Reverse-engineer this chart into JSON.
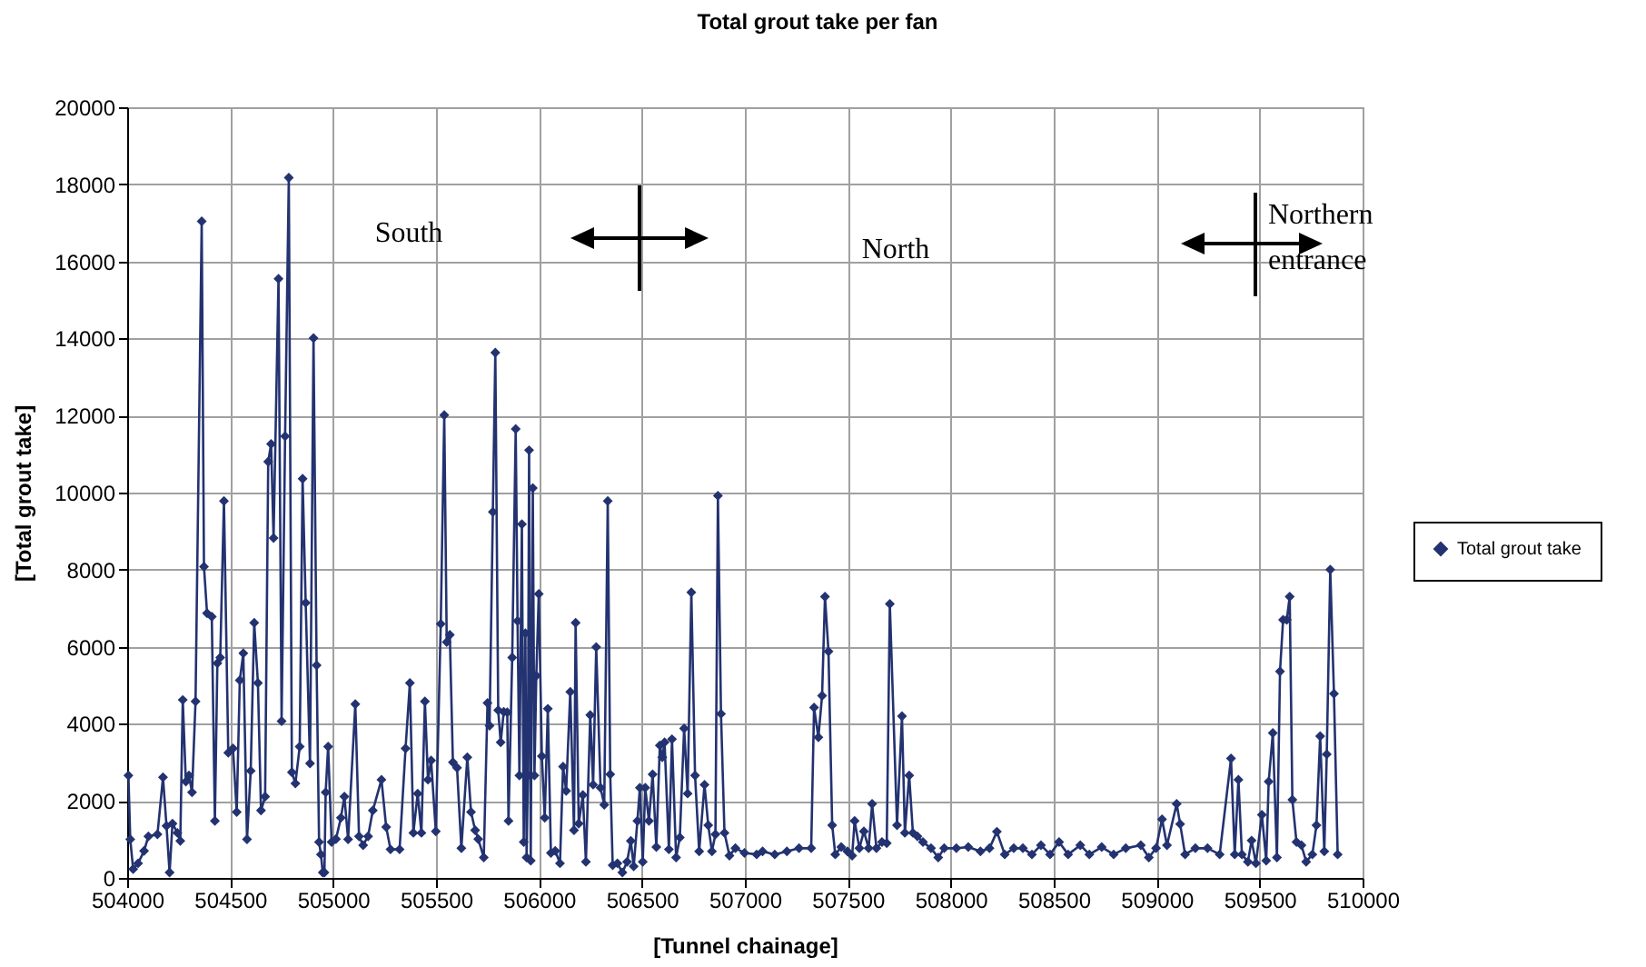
{
  "chart_data": {
    "type": "line",
    "title": "Total grout take per fan",
    "xlabel": "[Tunnel chainage]",
    "ylabel": "[Total grout take]",
    "xlim": [
      504000,
      510000
    ],
    "xticks": [
      504000,
      504500,
      505000,
      505500,
      506000,
      506500,
      507000,
      507500,
      508000,
      508500,
      509000,
      509500,
      510000
    ],
    "ylim": [
      0,
      20000
    ],
    "yticks": [
      0,
      2000,
      4000,
      6000,
      8000,
      10000,
      12000,
      14000,
      16000,
      18000,
      20000
    ],
    "grid": true,
    "legend": "right",
    "marker": "diamond",
    "line_style": "solid",
    "annotations": [
      "South",
      "North",
      "Northern entrance"
    ],
    "x": [
      504006,
      504015,
      504029,
      504053,
      504082,
      504103,
      504147,
      504174,
      504191,
      504206,
      504220,
      504244,
      504258,
      504270,
      504285,
      504300,
      504315,
      504332,
      504362,
      504373,
      504388,
      504411,
      504426,
      504438,
      504452,
      504470,
      504491,
      504514,
      504532,
      504547,
      504564,
      504582,
      504600,
      504617,
      504635,
      504650,
      504670,
      504685,
      504699,
      504711,
      504735,
      504750,
      504767,
      504785,
      504800,
      504817,
      504838,
      504852,
      504867,
      504888,
      504905,
      504920,
      504932,
      504941,
      504950,
      504958,
      504964,
      504976,
      504993,
      505014,
      505038,
      505055,
      505073,
      505108,
      505126,
      505146,
      505170,
      505193,
      505235,
      505258,
      505279,
      505323,
      505352,
      505373,
      505390,
      505411,
      505429,
      505446,
      505461,
      505476,
      505499,
      505523,
      505540,
      505552,
      505567,
      505582,
      505602,
      505623,
      505652,
      505670,
      505690,
      505705,
      505732,
      505750,
      505760,
      505776,
      505788,
      505802,
      505814,
      505829,
      505846,
      505852,
      505870,
      505887,
      505896,
      505905,
      505917,
      505926,
      505934,
      505940,
      505946,
      505952,
      505960,
      505970,
      505978,
      505987,
      505999,
      506014,
      506028,
      506043,
      506058,
      506079,
      506102,
      506117,
      506132,
      506152,
      506170,
      506178,
      506193,
      506213,
      506228,
      506249,
      506263,
      506278,
      506299,
      506317,
      506334,
      506346,
      506358,
      506381,
      506405,
      506428,
      506446,
      506460,
      506478,
      506490,
      506504,
      506516,
      506534,
      506552,
      506570,
      506587,
      506599,
      506610,
      506631,
      506646,
      506666,
      506684,
      506705,
      506722,
      506740,
      506758,
      506778,
      506804,
      506822,
      506840,
      506857,
      506869,
      506884,
      506901,
      506925,
      506954,
      506998,
      507057,
      507086,
      507145,
      507204,
      507263,
      507322,
      507336,
      507357,
      507375,
      507389,
      507406,
      507424,
      507439,
      507468,
      507498,
      507521,
      507533,
      507556,
      507578,
      507601,
      507618,
      507639,
      507666,
      507689,
      507704,
      507739,
      507763,
      507777,
      507798,
      507816,
      507838,
      507865,
      507904,
      507939,
      507968,
      508027,
      508085,
      508144,
      508188,
      508224,
      508262,
      508306,
      508350,
      508394,
      508438,
      508482,
      508526,
      508570,
      508629,
      508673,
      508733,
      508791,
      508850,
      508923,
      508962,
      508997,
      509026,
      509050,
      509097,
      509114,
      509138,
      509188,
      509247,
      509306,
      509361,
      509379,
      509397,
      509414,
      509443,
      509461,
      509482,
      509511,
      509532,
      509544,
      509564,
      509584,
      509599,
      509614,
      509632,
      509646,
      509659,
      509679,
      509703,
      509726,
      509756,
      509776,
      509794,
      509814,
      509826,
      509843,
      509861,
      509879
    ],
    "series": [
      {
        "name": "Total grout take",
        "color": "#233270",
        "values": [
          2660,
          1000,
          230,
          380,
          700,
          1080,
          1130,
          2610,
          1350,
          140,
          1410,
          1170,
          960,
          4620,
          2500,
          2660,
          2220,
          4580,
          17040,
          8080,
          6870,
          6780,
          1480,
          5570,
          5720,
          9780,
          3250,
          3360,
          1710,
          5130,
          5830,
          1000,
          2780,
          6620,
          5060,
          1750,
          2110,
          10800,
          11260,
          8820,
          15550,
          4070,
          11460,
          18170,
          2740,
          2450,
          3410,
          10360,
          7140,
          2970,
          14010,
          5520,
          930,
          610,
          140,
          140,
          2220,
          3410,
          930,
          1010,
          1560,
          2110,
          1000,
          4510,
          1080,
          850,
          1080,
          1750,
          2550,
          1320,
          740,
          740,
          3360,
          5060,
          1170,
          2190,
          1170,
          4580,
          2550,
          3050,
          1210,
          6590,
          12010,
          6120,
          6310,
          3000,
          2860,
          770,
          3130,
          1710,
          1240,
          1010,
          530,
          4540,
          3950,
          9500,
          13630,
          4350,
          3520,
          4310,
          4300,
          1480,
          5720,
          11650,
          6670,
          2660,
          9180,
          930,
          6350,
          530,
          2660,
          11100,
          450,
          10120,
          2660,
          5250,
          7370,
          3160,
          1560,
          4390,
          650,
          700,
          380,
          2890,
          2260,
          4830,
          1240,
          6620,
          1410,
          2150,
          420,
          4230,
          2420,
          5990,
          2340,
          1900,
          9780,
          2690,
          330,
          380,
          140,
          420,
          960,
          300,
          1480,
          2340,
          420,
          2340,
          1480,
          2690,
          800,
          3440,
          3130,
          3520,
          740,
          3600,
          530,
          1050,
          3880,
          2190,
          7410,
          2660,
          690,
          2420,
          1370,
          690,
          1130,
          9920,
          4260,
          1170,
          580,
          770,
          650,
          610,
          690,
          610,
          690,
          770,
          770,
          4420,
          3650,
          4730,
          7300,
          5880,
          1370,
          610,
          800,
          690,
          580,
          1480,
          770,
          1210,
          770,
          1920,
          770,
          930,
          900,
          7110,
          1370,
          4200,
          1170,
          2660,
          1170,
          1080,
          930,
          770,
          530,
          770,
          770,
          800,
          690,
          770,
          1200,
          610,
          770,
          770,
          610,
          850,
          610,
          930,
          610,
          850,
          610,
          800,
          610,
          770,
          850,
          530,
          770,
          1520,
          850,
          1920,
          1400,
          610,
          770,
          770,
          610,
          3100,
          610,
          2550,
          610,
          420,
          970,
          380,
          1640,
          450,
          2500,
          3760,
          530,
          5360,
          6700,
          6700,
          7300,
          2030,
          930,
          850,
          420,
          610,
          1370,
          3680,
          690,
          3210,
          8000,
          4780,
          610
        ]
      }
    ]
  }
}
